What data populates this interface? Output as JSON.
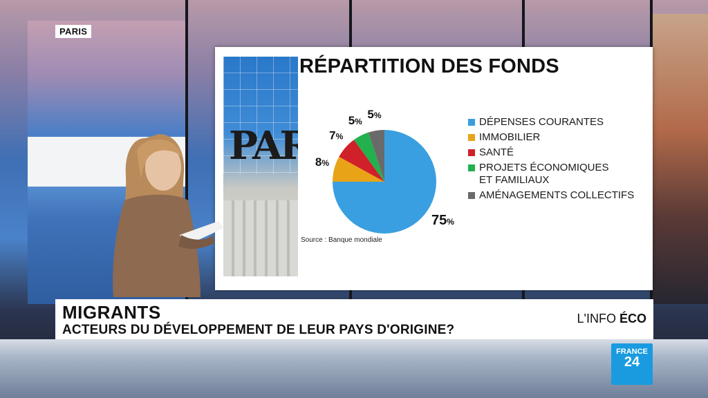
{
  "location": "PARIS",
  "infographic": {
    "title": "RÉPARTITION DES FONDS",
    "source": "Source : Banque mondiale"
  },
  "chart_data": {
    "type": "pie",
    "title": "RÉPARTITION DES FONDS",
    "slices": [
      {
        "label": "DÉPENSES COURANTES",
        "value": 75,
        "display": "75",
        "color": "#3a9fe0"
      },
      {
        "label": "IMMOBILIER",
        "value": 8,
        "display": "8",
        "color": "#e8a317"
      },
      {
        "label": "SANTÉ",
        "value": 7,
        "display": "7",
        "color": "#d0202a"
      },
      {
        "label": "PROJETS ÉCONOMIQUES\nET FAMILIAUX",
        "value": 5,
        "display": "5",
        "color": "#22b14c"
      },
      {
        "label": "AMÉNAGEMENTS COLLECTIFS",
        "value": 5,
        "display": "5",
        "color": "#6a6a6a"
      }
    ],
    "unit": "%",
    "legend_placement": "right"
  },
  "banner": {
    "title": "MIGRANTS",
    "subtitle": "ACTEURS DU DÉVELOPPEMENT DE LEUR PAYS D'ORIGINE?",
    "tag_light": "L'INFO ",
    "tag_bold": "ÉCO"
  },
  "logo": {
    "line1": "FRANCE",
    "line2": "24"
  }
}
